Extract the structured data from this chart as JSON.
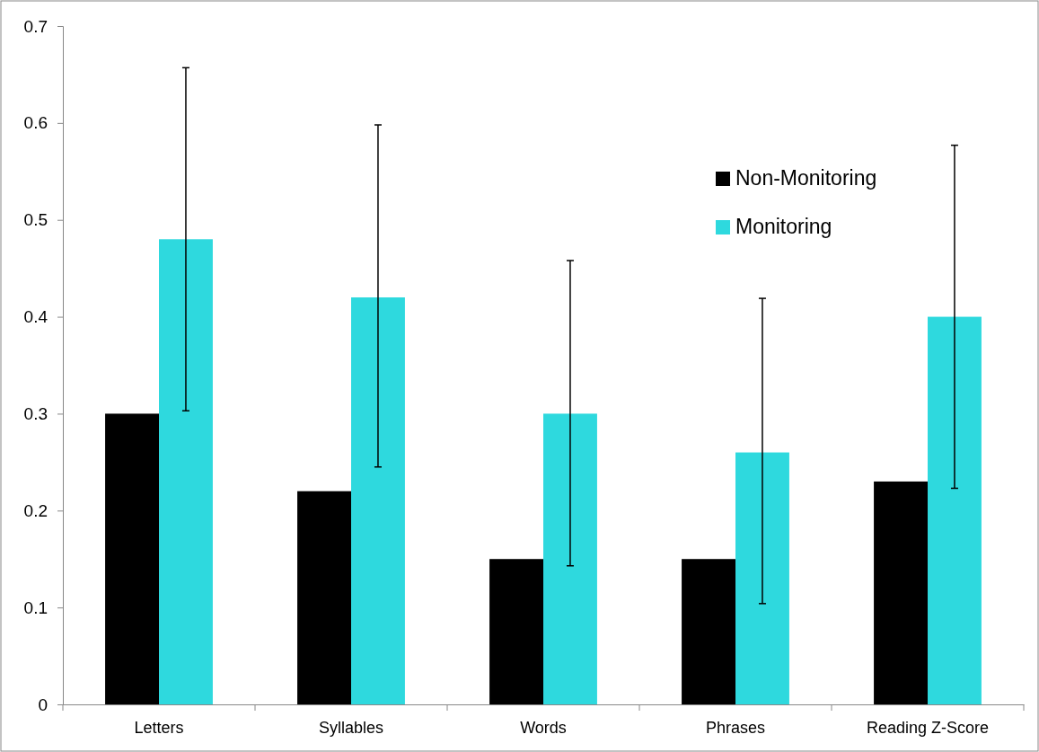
{
  "chart_data": {
    "type": "bar",
    "categories": [
      "Letters",
      "Syllables",
      "Words",
      "Phrases",
      "Reading Z-Score"
    ],
    "series": [
      {
        "name": "Non-Monitoring",
        "color": "#000000",
        "values": [
          0.3,
          0.22,
          0.15,
          0.15,
          0.23
        ]
      },
      {
        "name": "Monitoring",
        "color": "#2ed9de",
        "values": [
          0.48,
          0.42,
          0.3,
          0.26,
          0.4
        ],
        "errors": [
          [
            0.303,
            0.657
          ],
          [
            0.245,
            0.598
          ],
          [
            0.143,
            0.458
          ],
          [
            0.104,
            0.419
          ],
          [
            0.223,
            0.577
          ]
        ]
      }
    ],
    "ylim": [
      0,
      0.7
    ],
    "yticks": [
      0,
      0.1,
      0.2,
      0.3,
      0.4,
      0.5,
      0.6,
      0.7
    ],
    "grid": false,
    "legend": "top right"
  }
}
